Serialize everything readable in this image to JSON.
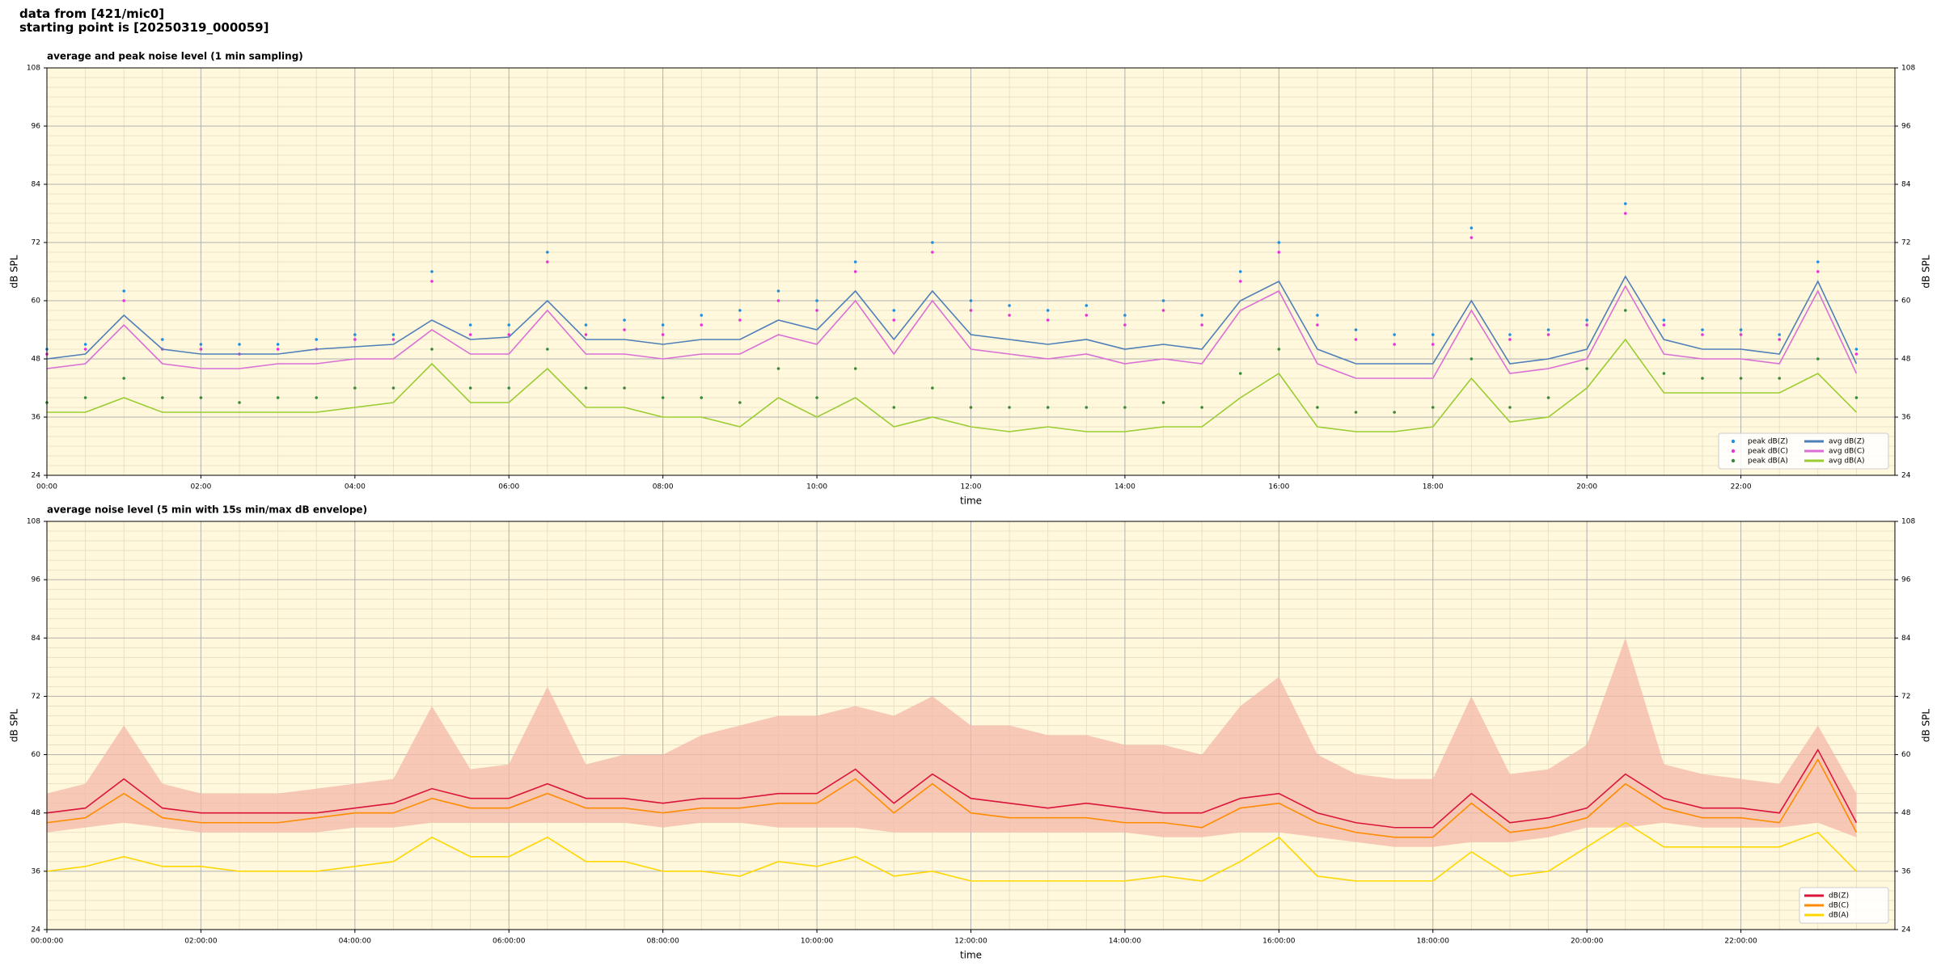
{
  "header": {
    "lines": [
      "data from [421/mic0]",
      "starting point is [20250319_000059]"
    ]
  },
  "chart_data": [
    {
      "type": "line",
      "title": "average and peak noise level (1 min sampling)",
      "xlabel": "time",
      "ylabel": "dB SPL",
      "background": "#fff8dc",
      "grid": true,
      "minor_grid": {
        "x": 4,
        "y": 6
      },
      "legend": "lower right",
      "legend_columns": 2,
      "xlim": [
        0,
        24
      ],
      "ylim": [
        24,
        108
      ],
      "yticks": [
        24,
        36,
        48,
        60,
        72,
        84,
        96,
        108
      ],
      "xticks": [
        {
          "value": 0,
          "label": "00:00"
        },
        {
          "value": 2,
          "label": "02:00"
        },
        {
          "value": 4,
          "label": "04:00"
        },
        {
          "value": 6,
          "label": "06:00"
        },
        {
          "value": 8,
          "label": "08:00"
        },
        {
          "value": 10,
          "label": "10:00"
        },
        {
          "value": 12,
          "label": "12:00"
        },
        {
          "value": 14,
          "label": "14:00"
        },
        {
          "value": 16,
          "label": "16:00"
        },
        {
          "value": 18,
          "label": "18:00"
        },
        {
          "value": 20,
          "label": "20:00"
        },
        {
          "value": 22,
          "label": "22:00"
        }
      ],
      "x": [
        0,
        0.5,
        1,
        1.5,
        2,
        2.5,
        3,
        3.5,
        4,
        4.5,
        5,
        5.5,
        6,
        6.5,
        7,
        7.5,
        8,
        8.5,
        9,
        9.5,
        10,
        10.5,
        11,
        11.5,
        12,
        12.5,
        13,
        13.5,
        14,
        14.5,
        15,
        15.5,
        16,
        16.5,
        17,
        17.5,
        18,
        18.5,
        19,
        19.5,
        20,
        20.5,
        21,
        21.5,
        22,
        22.5,
        23,
        23.5
      ],
      "series": [
        {
          "name": "peak dB(Z)",
          "type": "scatter",
          "color": "#1f8fe0",
          "values": [
            50,
            51,
            62,
            52,
            51,
            51,
            51,
            52,
            53,
            53,
            66,
            55,
            55,
            70,
            55,
            56,
            55,
            57,
            58,
            62,
            60,
            68,
            58,
            72,
            60,
            59,
            58,
            59,
            57,
            60,
            57,
            66,
            72,
            57,
            54,
            53,
            53,
            75,
            53,
            54,
            56,
            80,
            56,
            54,
            54,
            53,
            68,
            50
          ]
        },
        {
          "name": "peak dB(C)",
          "type": "scatter",
          "color": "#e833d8",
          "values": [
            49,
            50,
            60,
            50,
            50,
            49,
            50,
            50,
            52,
            52,
            64,
            53,
            53,
            68,
            53,
            54,
            53,
            55,
            56,
            60,
            58,
            66,
            56,
            70,
            58,
            57,
            56,
            57,
            55,
            58,
            55,
            64,
            70,
            55,
            52,
            51,
            51,
            73,
            52,
            53,
            55,
            78,
            55,
            53,
            53,
            52,
            66,
            49
          ]
        },
        {
          "name": "peak dB(A)",
          "type": "scatter",
          "color": "#3a8a3a",
          "values": [
            39,
            40,
            44,
            40,
            40,
            39,
            40,
            40,
            42,
            42,
            50,
            42,
            42,
            50,
            42,
            42,
            40,
            40,
            39,
            46,
            40,
            46,
            38,
            42,
            38,
            38,
            38,
            38,
            38,
            39,
            38,
            45,
            50,
            38,
            37,
            37,
            38,
            48,
            38,
            40,
            46,
            58,
            45,
            44,
            44,
            44,
            48,
            40
          ]
        },
        {
          "name": "avg dB(Z)",
          "type": "line",
          "color": "#4f7fb8",
          "values": [
            48,
            49,
            57,
            50,
            49,
            49,
            49,
            50,
            50.5,
            51,
            56,
            52,
            52.5,
            60,
            52,
            52,
            51,
            52,
            52,
            56,
            54,
            62,
            52,
            62,
            53,
            52,
            51,
            52,
            50,
            51,
            50,
            60,
            64,
            50,
            47,
            47,
            47,
            60,
            47,
            48,
            50,
            65,
            52,
            50,
            50,
            49,
            64,
            47
          ]
        },
        {
          "name": "avg dB(C)",
          "type": "line",
          "color": "#da70d6",
          "values": [
            46,
            47,
            55,
            47,
            46,
            46,
            47,
            47,
            48,
            48,
            54,
            49,
            49,
            58,
            49,
            49,
            48,
            49,
            49,
            53,
            51,
            60,
            49,
            60,
            50,
            49,
            48,
            49,
            47,
            48,
            47,
            58,
            62,
            47,
            44,
            44,
            44,
            58,
            45,
            46,
            48,
            63,
            49,
            48,
            48,
            47,
            62,
            45
          ]
        },
        {
          "name": "avg dB(A)",
          "type": "line",
          "color": "#9acd32",
          "values": [
            37,
            37,
            40,
            37,
            37,
            37,
            37,
            37,
            38,
            39,
            47,
            39,
            39,
            46,
            38,
            38,
            36,
            36,
            34,
            40,
            36,
            40,
            34,
            36,
            34,
            33,
            34,
            33,
            33,
            34,
            34,
            40,
            45,
            34,
            33,
            33,
            34,
            44,
            35,
            36,
            42,
            52,
            41,
            41,
            41,
            41,
            45,
            37
          ]
        }
      ]
    },
    {
      "type": "line",
      "title": "average noise level (5 min with 15s min/max dB envelope)",
      "xlabel": "time",
      "ylabel": "dB SPL",
      "background": "#fff8dc",
      "grid": true,
      "minor_grid": {
        "x": 4,
        "y": 6
      },
      "legend": "lower right",
      "legend_columns": 1,
      "xlim": [
        0,
        24
      ],
      "ylim": [
        24,
        108
      ],
      "yticks": [
        24,
        36,
        48,
        60,
        72,
        84,
        96,
        108
      ],
      "xticks": [
        {
          "value": 0,
          "label": "00:00:00"
        },
        {
          "value": 2,
          "label": "02:00:00"
        },
        {
          "value": 4,
          "label": "04:00:00"
        },
        {
          "value": 6,
          "label": "06:00:00"
        },
        {
          "value": 8,
          "label": "08:00:00"
        },
        {
          "value": 10,
          "label": "10:00:00"
        },
        {
          "value": 12,
          "label": "12:00:00"
        },
        {
          "value": 14,
          "label": "14:00:00"
        },
        {
          "value": 16,
          "label": "16:00:00"
        },
        {
          "value": 18,
          "label": "18:00:00"
        },
        {
          "value": 20,
          "label": "20:00:00"
        },
        {
          "value": 22,
          "label": "22:00:00"
        }
      ],
      "x": [
        0,
        0.5,
        1,
        1.5,
        2,
        2.5,
        3,
        3.5,
        4,
        4.5,
        5,
        5.5,
        6,
        6.5,
        7,
        7.5,
        8,
        8.5,
        9,
        9.5,
        10,
        10.5,
        11,
        11.5,
        12,
        12.5,
        13,
        13.5,
        14,
        14.5,
        15,
        15.5,
        16,
        16.5,
        17,
        17.5,
        18,
        18.5,
        19,
        19.5,
        20,
        20.5,
        21,
        21.5,
        22,
        22.5,
        23,
        23.5
      ],
      "envelope": {
        "color": "#f4b8a8",
        "low": [
          44,
          45,
          46,
          45,
          44,
          44,
          44,
          44,
          45,
          45,
          46,
          46,
          46,
          46,
          46,
          46,
          45,
          46,
          46,
          45,
          45,
          45,
          44,
          44,
          44,
          44,
          44,
          44,
          44,
          43,
          43,
          44,
          44,
          43,
          42,
          41,
          41,
          42,
          42,
          43,
          45,
          45,
          46,
          45,
          45,
          45,
          46,
          43
        ],
        "high": [
          52,
          54,
          66,
          54,
          52,
          52,
          52,
          53,
          54,
          55,
          70,
          57,
          58,
          74,
          58,
          60,
          60,
          64,
          66,
          68,
          68,
          70,
          68,
          72,
          66,
          66,
          64,
          64,
          62,
          62,
          60,
          70,
          76,
          60,
          56,
          55,
          55,
          72,
          56,
          57,
          62,
          84,
          58,
          56,
          55,
          54,
          66,
          52
        ]
      },
      "series": [
        {
          "name": "dB(Z)",
          "type": "line",
          "color": "#dc143c",
          "values": [
            48,
            49,
            55,
            49,
            48,
            48,
            48,
            48,
            49,
            50,
            53,
            51,
            51,
            54,
            51,
            51,
            50,
            51,
            51,
            52,
            52,
            57,
            50,
            56,
            51,
            50,
            49,
            50,
            49,
            48,
            48,
            51,
            52,
            48,
            46,
            45,
            45,
            52,
            46,
            47,
            49,
            56,
            51,
            49,
            49,
            48,
            61,
            46
          ]
        },
        {
          "name": "dB(C)",
          "type": "line",
          "color": "#ff8c00",
          "values": [
            46,
            47,
            52,
            47,
            46,
            46,
            46,
            47,
            48,
            48,
            51,
            49,
            49,
            52,
            49,
            49,
            48,
            49,
            49,
            50,
            50,
            55,
            48,
            54,
            48,
            47,
            47,
            47,
            46,
            46,
            45,
            49,
            50,
            46,
            44,
            43,
            43,
            50,
            44,
            45,
            47,
            54,
            49,
            47,
            47,
            46,
            59,
            44
          ]
        },
        {
          "name": "dB(A)",
          "type": "line",
          "color": "#ffd700",
          "values": [
            36,
            37,
            39,
            37,
            37,
            36,
            36,
            36,
            37,
            38,
            43,
            39,
            39,
            43,
            38,
            38,
            36,
            36,
            35,
            38,
            37,
            39,
            35,
            36,
            34,
            34,
            34,
            34,
            34,
            35,
            34,
            38,
            43,
            35,
            34,
            34,
            34,
            40,
            35,
            36,
            41,
            46,
            41,
            41,
            41,
            41,
            44,
            36
          ]
        }
      ]
    }
  ]
}
